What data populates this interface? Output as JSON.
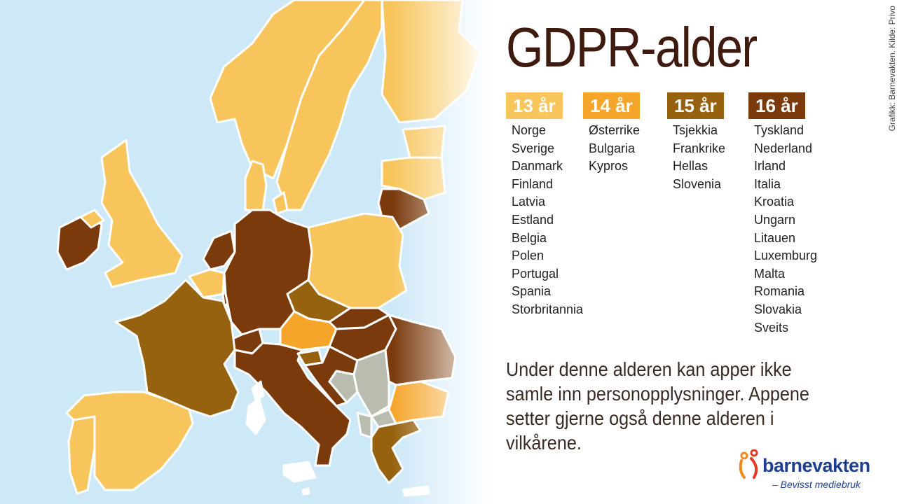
{
  "title": "GDPR-alder",
  "credit": "Grafikk: Barnevakten. Kilde: Privo",
  "colors": {
    "sea": "#cde8f7",
    "age13": "#f7c55c",
    "age14": "#f5a52a",
    "age15": "#96620f",
    "age16": "#7a3a0c",
    "non_eu": "#b9bdb0",
    "brand": "#1e3f8f"
  },
  "groups": [
    {
      "label": "13 år",
      "countries": [
        "Norge",
        "Sverige",
        "Danmark",
        "Finland",
        "Latvia",
        "Estland",
        "Belgia",
        "Polen",
        "Portugal",
        "Spania",
        "Storbritannia"
      ]
    },
    {
      "label": "14 år",
      "countries": [
        "Østerrike",
        "Bulgaria",
        "Kypros"
      ]
    },
    {
      "label": "15 år",
      "countries": [
        "Tsjekkia",
        "Frankrike",
        "Hellas",
        "Slovenia"
      ]
    },
    {
      "label": "16 år",
      "countries": [
        "Tyskland",
        "Nederland",
        "Irland",
        "Italia",
        "Kroatia",
        "Ungarn",
        "Litauen",
        "Luxemburg",
        "Malta",
        "Romania",
        "Slovakia",
        "Sveits"
      ]
    }
  ],
  "note": "Under denne alderen kan apper ikke samle inn personopplysninger. Appene setter gjerne også denne alderen i vilkårene.",
  "logo": {
    "name": "barnevakten",
    "tagline": "– Bevisst mediebruk",
    "icon": "two-children-figure-icon"
  }
}
